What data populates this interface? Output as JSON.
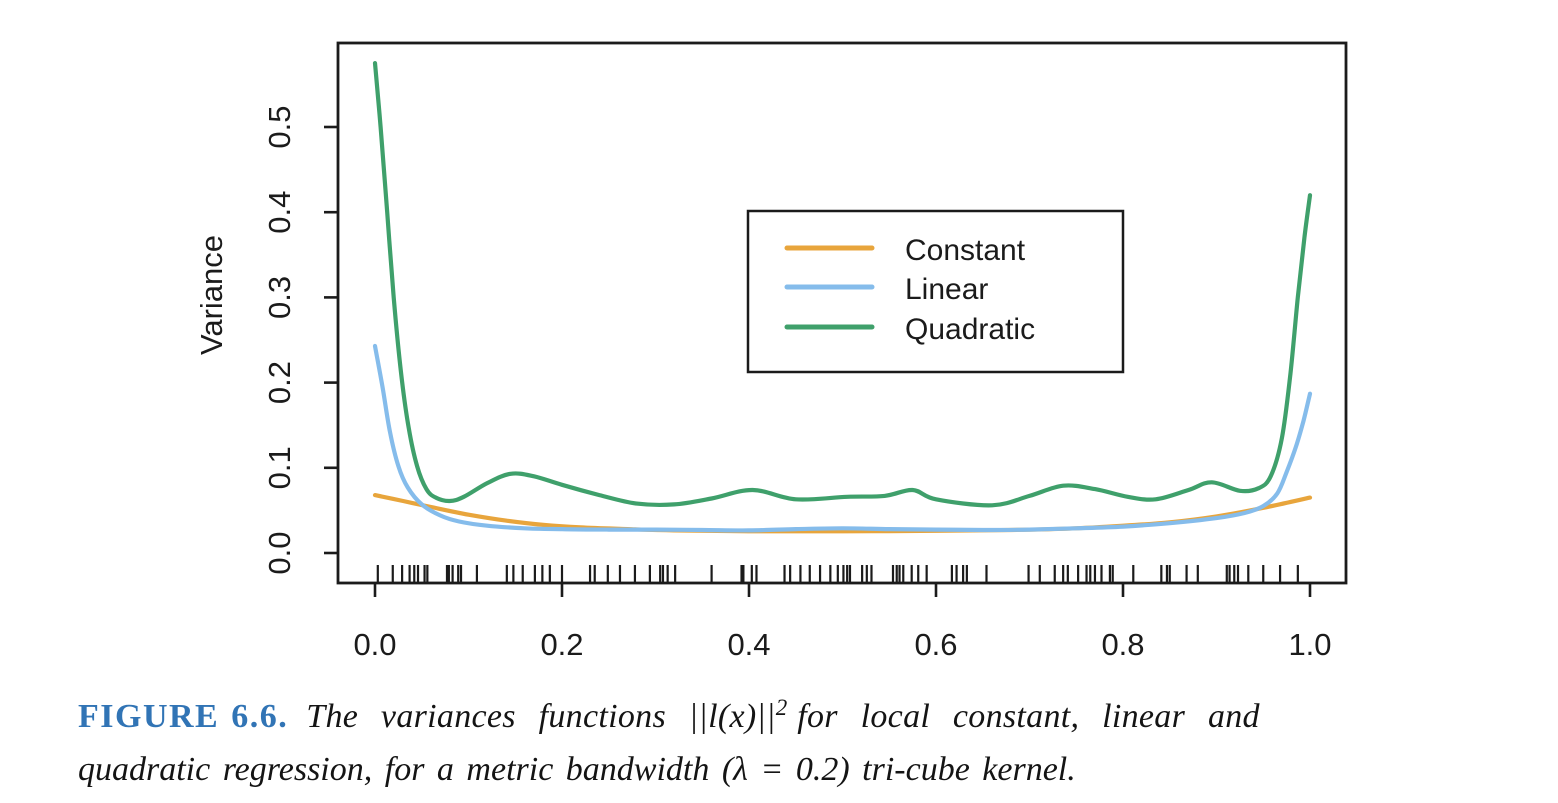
{
  "caption": {
    "label": "FIGURE 6.6.",
    "part1": "The variances functions ||l(x)||",
    "exponent": "2",
    "part2": "for local constant, linear and",
    "line2": "quadratic regression, for a metric bandwidth (λ = 0.2) tri-cube kernel.",
    "label_color": "#3174B5"
  },
  "chart_data": {
    "type": "line",
    "title": "",
    "xlabel": "",
    "ylabel": "Variance",
    "xlim": [
      -0.04,
      1.04
    ],
    "ylim": [
      -0.035,
      0.6
    ],
    "x_ticks": [
      0.0,
      0.2,
      0.4,
      0.6,
      0.8,
      1.0
    ],
    "y_ticks": [
      0.0,
      0.1,
      0.2,
      0.3,
      0.4,
      0.5
    ],
    "grid": false,
    "axis_color": "#1b1b1b",
    "legend": {
      "position": "top-center",
      "entries": [
        "Constant",
        "Linear",
        "Quadratic"
      ]
    },
    "series": [
      {
        "name": "Constant",
        "color": "#E8A53C",
        "points": [
          [
            0,
            0.068
          ],
          [
            0.03,
            0.061
          ],
          [
            0.06,
            0.054
          ],
          [
            0.1,
            0.045
          ],
          [
            0.14,
            0.038
          ],
          [
            0.18,
            0.033
          ],
          [
            0.22,
            0.03
          ],
          [
            0.27,
            0.028
          ],
          [
            0.32,
            0.0265
          ],
          [
            0.4,
            0.0255
          ],
          [
            0.5,
            0.0255
          ],
          [
            0.6,
            0.026
          ],
          [
            0.68,
            0.027
          ],
          [
            0.74,
            0.0285
          ],
          [
            0.8,
            0.032
          ],
          [
            0.85,
            0.036
          ],
          [
            0.9,
            0.043
          ],
          [
            0.95,
            0.053
          ],
          [
            1,
            0.065
          ]
        ]
      },
      {
        "name": "Linear",
        "color": "#85BCEB",
        "points": [
          [
            0,
            0.243
          ],
          [
            0.008,
            0.195
          ],
          [
            0.016,
            0.142
          ],
          [
            0.025,
            0.102
          ],
          [
            0.035,
            0.077
          ],
          [
            0.05,
            0.057
          ],
          [
            0.07,
            0.044
          ],
          [
            0.09,
            0.037
          ],
          [
            0.12,
            0.032
          ],
          [
            0.16,
            0.029
          ],
          [
            0.2,
            0.028
          ],
          [
            0.25,
            0.0275
          ],
          [
            0.3,
            0.0275
          ],
          [
            0.35,
            0.027
          ],
          [
            0.4,
            0.0265
          ],
          [
            0.45,
            0.028
          ],
          [
            0.5,
            0.029
          ],
          [
            0.55,
            0.028
          ],
          [
            0.6,
            0.0275
          ],
          [
            0.65,
            0.027
          ],
          [
            0.7,
            0.0275
          ],
          [
            0.75,
            0.029
          ],
          [
            0.8,
            0.031
          ],
          [
            0.85,
            0.035
          ],
          [
            0.9,
            0.041
          ],
          [
            0.93,
            0.047
          ],
          [
            0.95,
            0.055
          ],
          [
            0.965,
            0.07
          ],
          [
            0.975,
            0.095
          ],
          [
            0.985,
            0.125
          ],
          [
            0.993,
            0.155
          ],
          [
            1,
            0.187
          ]
        ]
      },
      {
        "name": "Quadratic",
        "color": "#3FA06B",
        "points": [
          [
            0,
            0.575
          ],
          [
            0.006,
            0.5
          ],
          [
            0.013,
            0.4
          ],
          [
            0.02,
            0.3
          ],
          [
            0.028,
            0.21
          ],
          [
            0.036,
            0.147
          ],
          [
            0.045,
            0.102
          ],
          [
            0.055,
            0.075
          ],
          [
            0.065,
            0.065
          ],
          [
            0.08,
            0.061
          ],
          [
            0.095,
            0.066
          ],
          [
            0.12,
            0.082
          ],
          [
            0.145,
            0.093
          ],
          [
            0.17,
            0.09
          ],
          [
            0.2,
            0.08
          ],
          [
            0.24,
            0.068
          ],
          [
            0.28,
            0.058
          ],
          [
            0.32,
            0.057
          ],
          [
            0.36,
            0.064
          ],
          [
            0.404,
            0.074
          ],
          [
            0.45,
            0.063
          ],
          [
            0.505,
            0.066
          ],
          [
            0.545,
            0.067
          ],
          [
            0.575,
            0.074
          ],
          [
            0.6,
            0.063
          ],
          [
            0.66,
            0.056
          ],
          [
            0.7,
            0.067
          ],
          [
            0.736,
            0.079
          ],
          [
            0.77,
            0.075
          ],
          [
            0.805,
            0.066
          ],
          [
            0.835,
            0.063
          ],
          [
            0.87,
            0.074
          ],
          [
            0.895,
            0.083
          ],
          [
            0.925,
            0.073
          ],
          [
            0.945,
            0.076
          ],
          [
            0.958,
            0.09
          ],
          [
            0.97,
            0.135
          ],
          [
            0.979,
            0.21
          ],
          [
            0.987,
            0.3
          ],
          [
            0.994,
            0.37
          ],
          [
            1,
            0.42
          ]
        ]
      }
    ],
    "rug_x": [
      0.003,
      0.019,
      0.029,
      0.037,
      0.042,
      0.046,
      0.053,
      0.056,
      0.077,
      0.079,
      0.083,
      0.089,
      0.092,
      0.109,
      0.141,
      0.148,
      0.158,
      0.171,
      0.179,
      0.187,
      0.2,
      0.23,
      0.235,
      0.249,
      0.262,
      0.278,
      0.294,
      0.305,
      0.308,
      0.313,
      0.321,
      0.36,
      0.392,
      0.394,
      0.403,
      0.408,
      0.438,
      0.444,
      0.455,
      0.465,
      0.476,
      0.487,
      0.495,
      0.501,
      0.505,
      0.508,
      0.521,
      0.526,
      0.531,
      0.554,
      0.558,
      0.561,
      0.565,
      0.574,
      0.581,
      0.59,
      0.617,
      0.622,
      0.629,
      0.633,
      0.654,
      0.699,
      0.711,
      0.727,
      0.736,
      0.741,
      0.752,
      0.761,
      0.765,
      0.77,
      0.777,
      0.786,
      0.789,
      0.811,
      0.841,
      0.847,
      0.85,
      0.868,
      0.88,
      0.911,
      0.914,
      0.919,
      0.923,
      0.934,
      0.95,
      0.968,
      0.987
    ]
  }
}
